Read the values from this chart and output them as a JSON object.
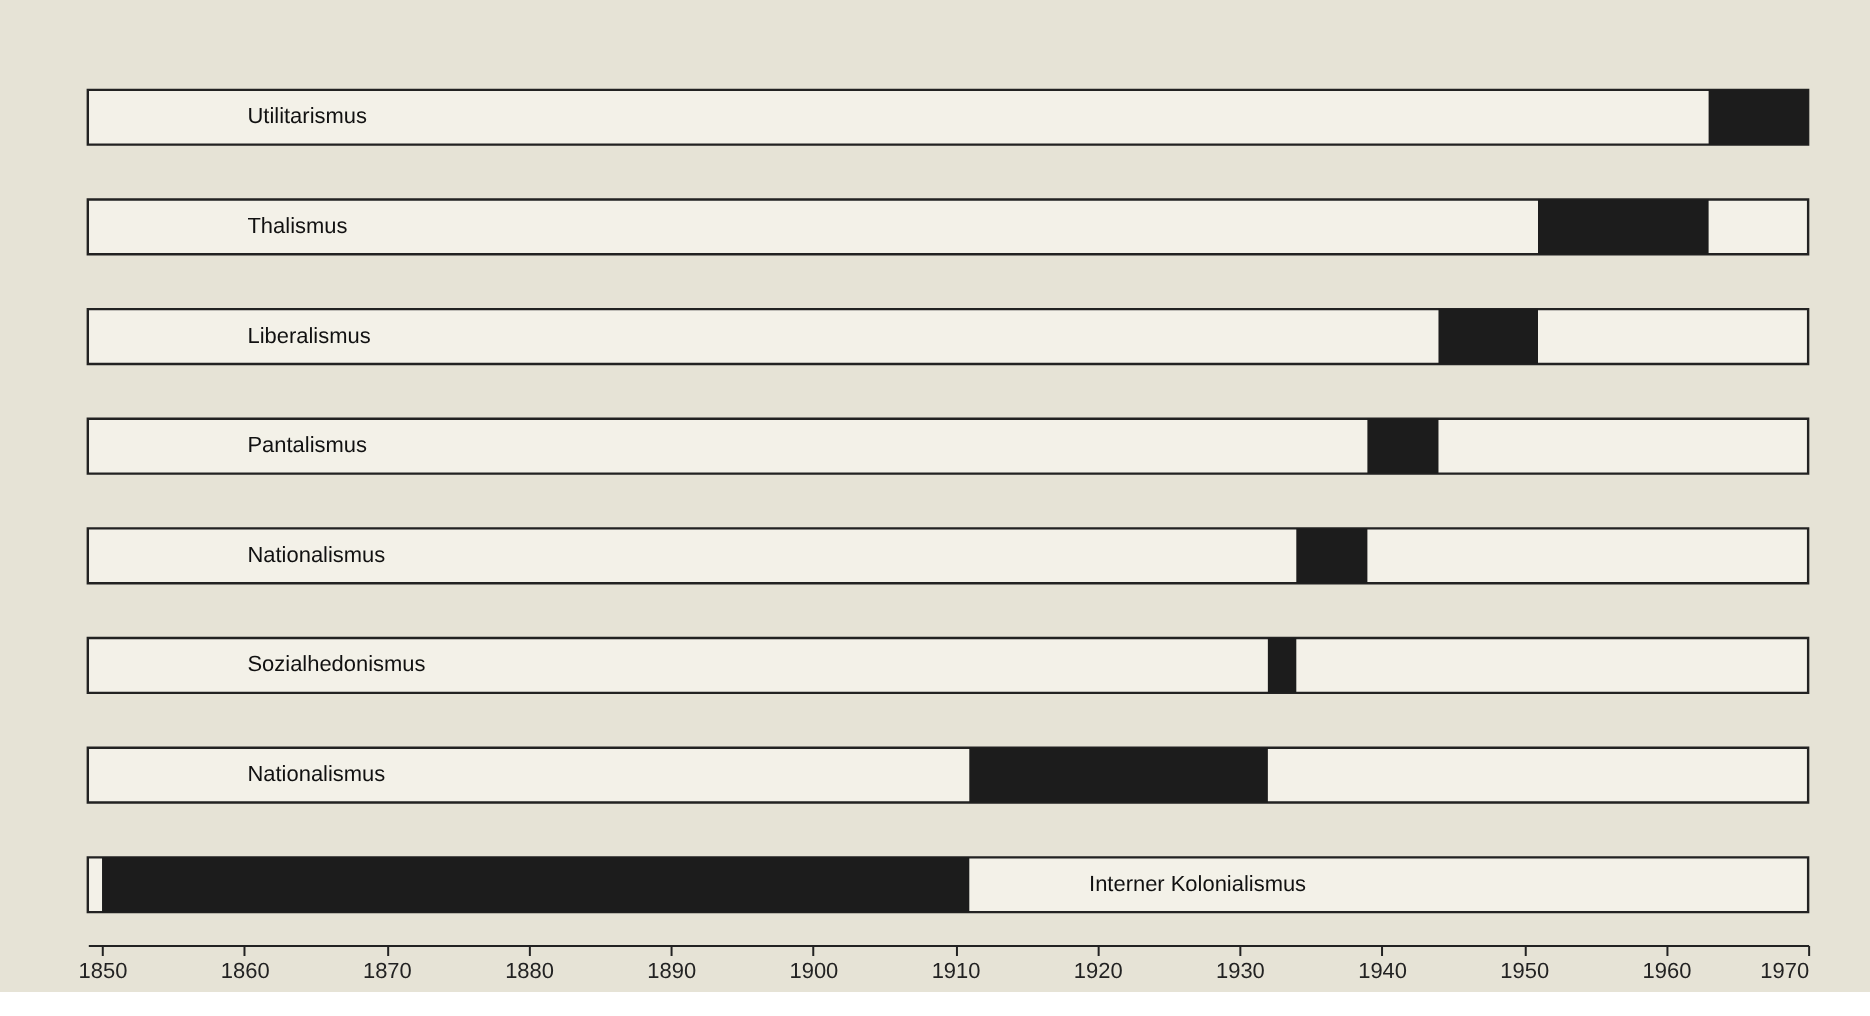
{
  "chart_data": {
    "type": "bar",
    "orientation": "horizontal",
    "categories": [
      "Utilitarismus",
      "Thalismus",
      "Liberalismus",
      "Pantalismus",
      "Nationalismus",
      "Sozialhedonismus",
      "Nationalismus",
      "Interner Kolonialismus"
    ],
    "base": [
      1963,
      1951,
      1944,
      1939,
      1934,
      1932,
      1911,
      1850
    ],
    "values": [
      7,
      12,
      7,
      5,
      5,
      2,
      21,
      61
    ],
    "color": "#1c1c1c",
    "xlim": [
      1849,
      1970
    ],
    "xticks": [
      1850,
      1860,
      1870,
      1880,
      1890,
      1900,
      1910,
      1920,
      1930,
      1940,
      1950,
      1960,
      1970
    ],
    "grid": false
  }
}
